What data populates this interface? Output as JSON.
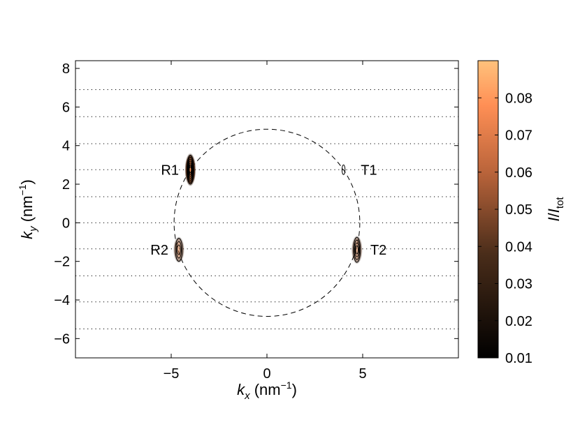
{
  "chart_data": {
    "type": "contour",
    "xlabel": {
      "var": "k",
      "sub": "x",
      "unit_pre": " (nm",
      "unit_sup": "−1",
      "unit_post": ")"
    },
    "ylabel": {
      "var": "k",
      "sub": "y",
      "unit_pre": " (nm",
      "unit_sup": "−1",
      "unit_post": ")"
    },
    "xlim": [
      -10,
      10
    ],
    "ylim": [
      -7,
      8.4
    ],
    "x_ticks": [
      -5,
      0,
      5
    ],
    "x_tick_labels": [
      "−5",
      "0",
      "5"
    ],
    "y_ticks": [
      -6,
      -4,
      -2,
      0,
      2,
      4,
      6,
      8
    ],
    "y_tick_labels": [
      "−6",
      "−4",
      "−2",
      "0",
      "2",
      "4",
      "6",
      "8"
    ],
    "horizontal_dotted_lines": [
      -5.5,
      -4.1,
      -2.75,
      -1.35,
      0,
      1.35,
      2.75,
      4.1,
      5.5,
      6.9
    ],
    "circle": {
      "center": [
        0,
        0
      ],
      "radius": 4.85,
      "style": "dashed"
    },
    "peaks": [
      {
        "label": "R1",
        "x": -4.0,
        "y": 2.75,
        "sx": 0.18,
        "sy": 0.75,
        "amplitude": 0.085,
        "contours": 7
      },
      {
        "label": "R2",
        "x": -4.6,
        "y": -1.4,
        "sx": 0.18,
        "sy": 0.6,
        "amplitude": 0.03,
        "contours": 3
      },
      {
        "label": "T1",
        "x": 4.0,
        "y": 2.75,
        "sx": 0.08,
        "sy": 0.25,
        "amplitude": 0.012,
        "contours": 1
      },
      {
        "label": "T2",
        "x": 4.7,
        "y": -1.4,
        "sx": 0.18,
        "sy": 0.65,
        "amplitude": 0.03,
        "contours": 4
      }
    ],
    "colorbar": {
      "label": {
        "var": "I",
        "sep": "/",
        "var2": "I",
        "sub": "tot"
      },
      "range": [
        0.01,
        0.09
      ],
      "ticks": [
        0.01,
        0.02,
        0.03,
        0.04,
        0.05,
        0.06,
        0.07,
        0.08
      ],
      "tick_labels": [
        "0.01",
        "0.02",
        "0.03",
        "0.04",
        "0.05",
        "0.06",
        "0.07",
        "0.08"
      ],
      "colormap": [
        "#000000",
        "#7a4a2c",
        "#ff8c4d",
        "#ffc07a"
      ]
    }
  }
}
